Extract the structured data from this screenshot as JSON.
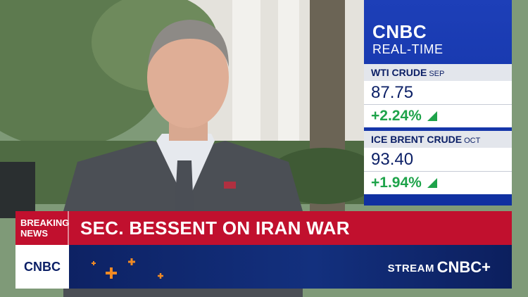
{
  "ticker_panel": {
    "brand": "CNBC",
    "subtitle": "REAL-TIME",
    "quotes": [
      {
        "name": "WTI CRUDE",
        "month": "SEP",
        "price": "87.75",
        "change": "+2.24%"
      },
      {
        "name": "ICE BRENT CRUDE",
        "month": "OCT",
        "price": "93.40",
        "change": "+1.94%"
      }
    ]
  },
  "lower_third": {
    "tag_line1": "BREAKING",
    "tag_line2": "NEWS",
    "headline": "SEC. BESSENT ON IRAN WAR",
    "logo": "CNBC",
    "stream_label": "STREAM",
    "stream_brand": "CNBC+"
  }
}
